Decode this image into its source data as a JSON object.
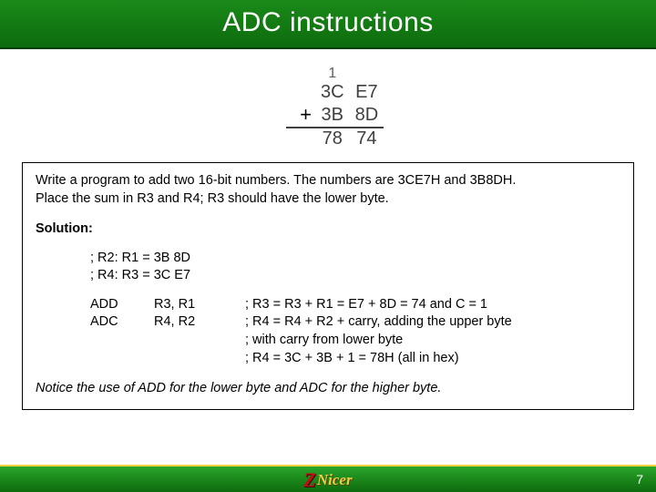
{
  "title": "ADC instructions",
  "figure": {
    "carry": [
      "",
      "1",
      ""
    ],
    "row1": [
      "",
      "3C",
      "E7"
    ],
    "row2_plus": "+",
    "row2": [
      "3B",
      "8D"
    ],
    "result": [
      "",
      "78",
      "74"
    ],
    "text_color": "#404040",
    "underline_color": "#404040"
  },
  "content": {
    "problem_line1": "Write a program to add two 16-bit numbers. The numbers are 3CE7H and 3B8DH.",
    "problem_line2": "Place the sum in R3 and R4; R3 should have the lower byte.",
    "solution_label": "Solution:",
    "init1": "; R2: R1 = 3B 8D",
    "init2": "; R4: R3 = 3C E7",
    "code": [
      {
        "op": "ADD",
        "args": "R3, R1",
        "comment": "; R3 = R3 + R1 = E7 + 8D = 74 and C = 1"
      },
      {
        "op": "ADC",
        "args": "R4, R2",
        "comment": "; R4 = R4 + R2 + carry, adding the upper byte"
      },
      {
        "op": "",
        "args": "",
        "comment": "; with carry from lower byte"
      },
      {
        "op": "",
        "args": "",
        "comment": "; R4 = 3C + 3B + 1 = 78H (all in hex)"
      }
    ],
    "notice": "Notice the use of ADD for the lower byte and ADC for the higher byte."
  },
  "footer": {
    "logo_z": "Z",
    "logo_text": "Nicer",
    "page_number": "7"
  },
  "colors": {
    "title_gradient_top": "#1a8a1a",
    "title_gradient_bottom": "#0d6b0d",
    "footer_gradient_top": "#2aa52a",
    "footer_gradient_bottom": "#0d6b0d",
    "footer_border": "#ffd040",
    "box_border": "#000000",
    "background": "#ffffff"
  }
}
